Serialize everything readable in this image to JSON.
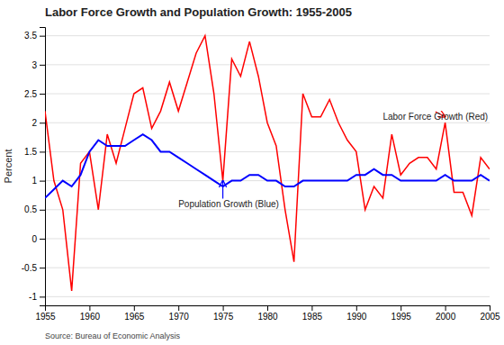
{
  "chart_data": {
    "type": "line",
    "title": "Labor Force Growth and Population Growth: 1955-2005",
    "ylabel": "Percent",
    "source": "Source: Bureau of Economic Analysis",
    "x": [
      1955,
      1956,
      1957,
      1958,
      1959,
      1960,
      1961,
      1962,
      1963,
      1964,
      1965,
      1966,
      1967,
      1968,
      1969,
      1970,
      1971,
      1972,
      1973,
      1974,
      1975,
      1976,
      1977,
      1978,
      1979,
      1980,
      1981,
      1982,
      1983,
      1984,
      1985,
      1986,
      1987,
      1988,
      1989,
      1990,
      1991,
      1992,
      1993,
      1994,
      1995,
      1996,
      1997,
      1998,
      1999,
      2000,
      2001,
      2002,
      2003,
      2004,
      2005
    ],
    "series": [
      {
        "name": "Labor Force Growth (Red)",
        "color": "#ff0000",
        "values": [
          2.2,
          1.0,
          0.5,
          -0.9,
          1.3,
          1.5,
          0.5,
          1.8,
          1.3,
          1.9,
          2.5,
          2.6,
          1.9,
          2.2,
          2.7,
          2.2,
          2.7,
          3.2,
          3.5,
          2.5,
          1.0,
          3.1,
          2.8,
          3.4,
          2.8,
          2.0,
          1.6,
          0.5,
          -0.4,
          2.5,
          2.1,
          2.1,
          2.4,
          2.0,
          1.7,
          1.5,
          0.5,
          0.9,
          0.7,
          1.8,
          1.1,
          1.3,
          1.4,
          1.4,
          1.2,
          2.0,
          0.8,
          0.8,
          0.4,
          1.4,
          1.2
        ]
      },
      {
        "name": "Population Growth (Blue)",
        "color": "#0000ff",
        "values": [
          0.7,
          0.85,
          1.0,
          0.9,
          1.1,
          1.5,
          1.7,
          1.6,
          1.6,
          1.6,
          1.7,
          1.8,
          1.7,
          1.5,
          1.5,
          1.4,
          1.3,
          1.2,
          1.1,
          1.0,
          0.9,
          1.0,
          1.0,
          1.1,
          1.1,
          1.0,
          1.0,
          0.9,
          0.9,
          1.0,
          1.0,
          1.0,
          1.0,
          1.0,
          1.0,
          1.1,
          1.1,
          1.2,
          1.1,
          1.1,
          1.0,
          1.0,
          1.0,
          1.0,
          1.0,
          1.1,
          1.0,
          1.0,
          1.0,
          1.1,
          1.0
        ]
      }
    ],
    "annotations": [
      {
        "text": "Labor Force Growth (Red)",
        "x": 1993,
        "y": 2.05,
        "target_x": 2000,
        "target_y": 2.1,
        "color": "#ff0000"
      },
      {
        "text": "Population Growth (Blue)",
        "x": 1970,
        "y": 0.55,
        "target_x": 1975,
        "target_y": 1.0,
        "color": "#0000ff"
      }
    ],
    "xlim": [
      1955,
      2005
    ],
    "xticks": [
      1955,
      1960,
      1965,
      1970,
      1975,
      1980,
      1985,
      1990,
      1995,
      2000,
      2005
    ],
    "ylim": [
      -1.15,
      3.65
    ],
    "yticks": [
      -1.0,
      -0.5,
      0,
      0.5,
      1,
      1.5,
      2,
      2.5,
      3,
      3.5
    ],
    "grid": true
  }
}
